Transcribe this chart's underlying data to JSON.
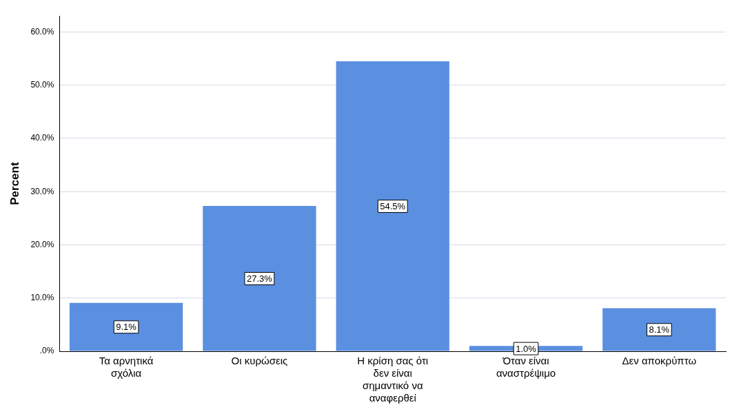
{
  "chart_data": {
    "type": "bar",
    "ylabel": "Percent",
    "categories": [
      "Τα αρνητικά σχόλια",
      "Οι κυρώσεις",
      "Η κρίση σας ότι δεν είναι σημαντικό να αναφερθεί",
      "Όταν είναι αναστρέψιμο",
      "Δεν αποκρύπτω"
    ],
    "values": [
      9.1,
      27.3,
      54.5,
      1.0,
      8.1
    ],
    "value_labels": [
      "9.1%",
      "27.3%",
      "54.5%",
      "1.0%",
      "8.1%"
    ],
    "color": "#5b8fe0",
    "ylim": [
      0,
      63
    ],
    "yticks": [
      {
        "value": 0,
        "label": ".0%"
      },
      {
        "value": 10,
        "label": "10.0%"
      },
      {
        "value": 20,
        "label": "20.0%"
      },
      {
        "value": 30,
        "label": "30.0%"
      },
      {
        "value": 40,
        "label": "40.0%"
      },
      {
        "value": 50,
        "label": "50.0%"
      },
      {
        "value": 60,
        "label": "60.0%"
      }
    ],
    "grid": "y",
    "legend": false
  }
}
